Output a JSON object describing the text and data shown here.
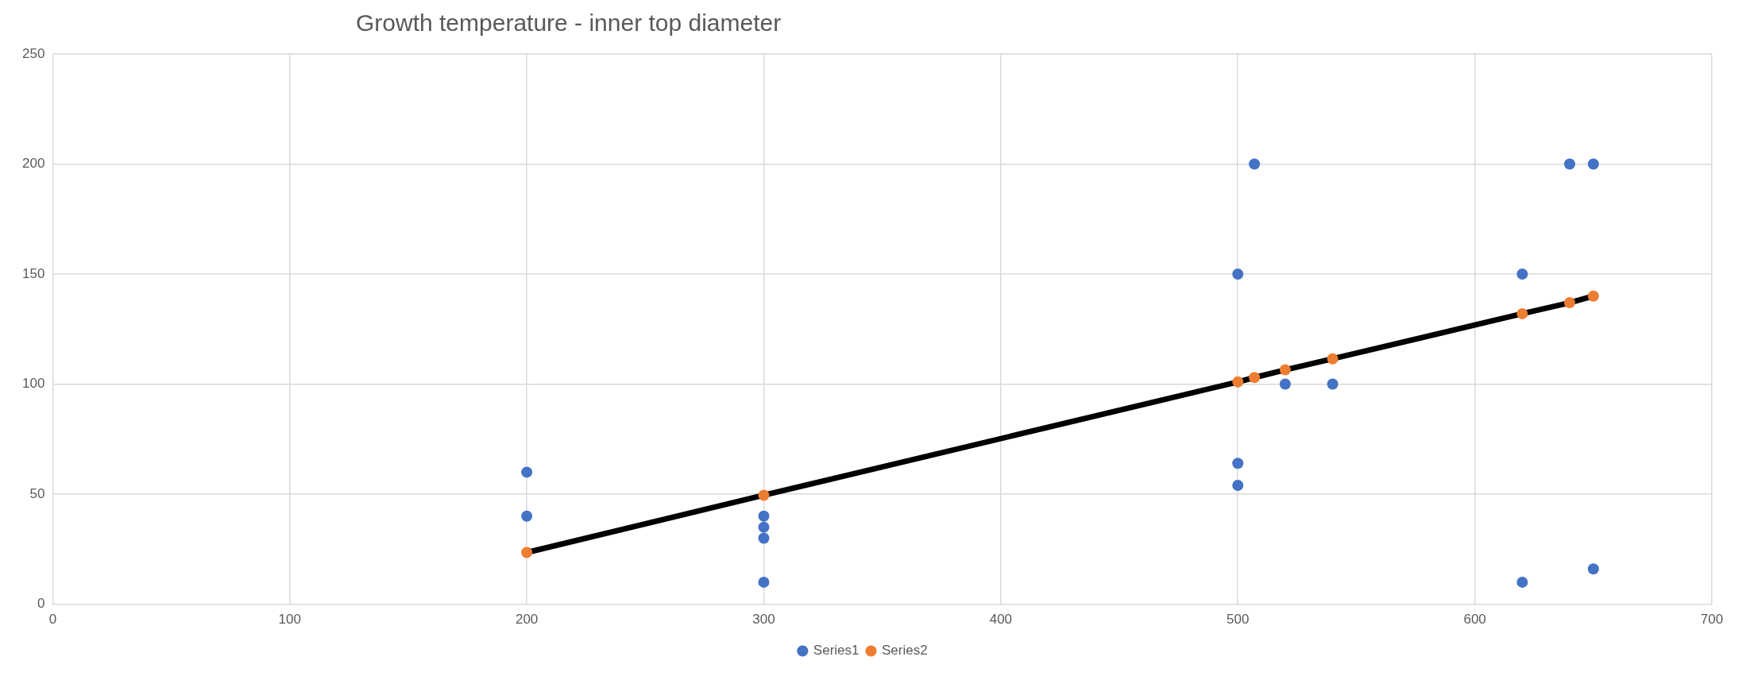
{
  "chart_data": {
    "type": "scatter",
    "title": "Growth temperature - inner top diameter",
    "xlim": [
      0,
      700
    ],
    "xticks": [
      0,
      100,
      200,
      300,
      400,
      500,
      600,
      700
    ],
    "ylim": [
      0,
      250
    ],
    "yticks": [
      0,
      50,
      100,
      150,
      200,
      250
    ],
    "grid": true,
    "legend": "bottom",
    "marker": "circle",
    "series": [
      {
        "name": "Series1",
        "type": "scatter",
        "color": "#4472c4",
        "x": [
          200,
          200,
          300,
          300,
          300,
          300,
          500,
          507,
          500,
          500,
          520,
          540,
          620,
          620,
          640,
          650,
          650
        ],
        "values": [
          60,
          40,
          40,
          35,
          30,
          10,
          150,
          200,
          64,
          54,
          100,
          100,
          150,
          10,
          200,
          200,
          16
        ]
      },
      {
        "name": "Series2",
        "type": "line",
        "color": "#000000",
        "colors": [
          "#ed7d31",
          "#ed7d31",
          "#ed7d31",
          "#ed7d31",
          "#ed7d31",
          "#ed7d31",
          "#ed7d31",
          "#ed7d31",
          "#ed7d31"
        ],
        "x": [
          200,
          300,
          500,
          507,
          520,
          540,
          620,
          640,
          650
        ],
        "values": [
          23.5,
          49.5,
          101,
          103,
          106.5,
          111.5,
          132,
          137,
          140
        ]
      }
    ]
  }
}
